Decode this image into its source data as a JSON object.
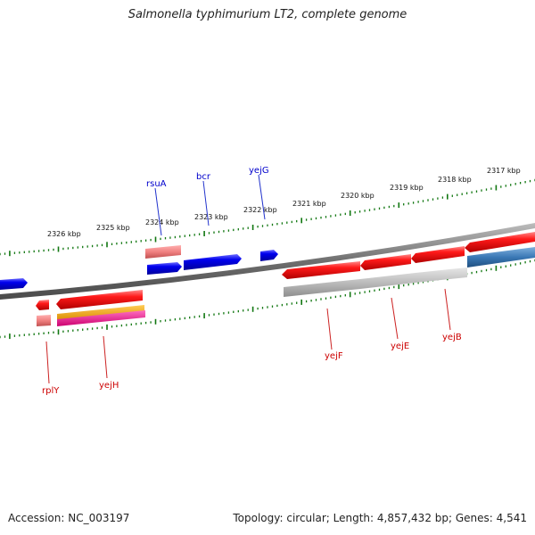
{
  "title": "Salmonella typhimurium LT2, complete genome",
  "footer": {
    "accession": "Accession: NC_003197",
    "topology": "Topology: circular; Length: 4,857,432 bp; Genes: 4,541"
  },
  "ruler_labels": [
    "2326 kbp",
    "2325 kbp",
    "2324 kbp",
    "2323 kbp",
    "2322 kbp",
    "2321 kbp",
    "2320 kbp",
    "2319 kbp",
    "2318 kbp",
    "2317 kbp"
  ],
  "upper_gene_labels": [
    "rsuA",
    "bcr",
    "yejG"
  ],
  "lower_gene_labels": [
    "rplY",
    "yejH",
    "yejF",
    "yejE",
    "yejB"
  ],
  "colors": {
    "forward_gene": "#0000ee",
    "reverse_gene": "#ee0000",
    "upper_label": "#0000cc",
    "lower_label": "#cc0000",
    "ruler": "#117711",
    "backbone": "#7a7a7a",
    "rna_light_red": "#f08080",
    "orange_feature": "#f5a000",
    "magenta_feature": "#ff1493",
    "grey_feature": "#bdbdbd",
    "steel_blue_feature": "#3a78b5"
  }
}
